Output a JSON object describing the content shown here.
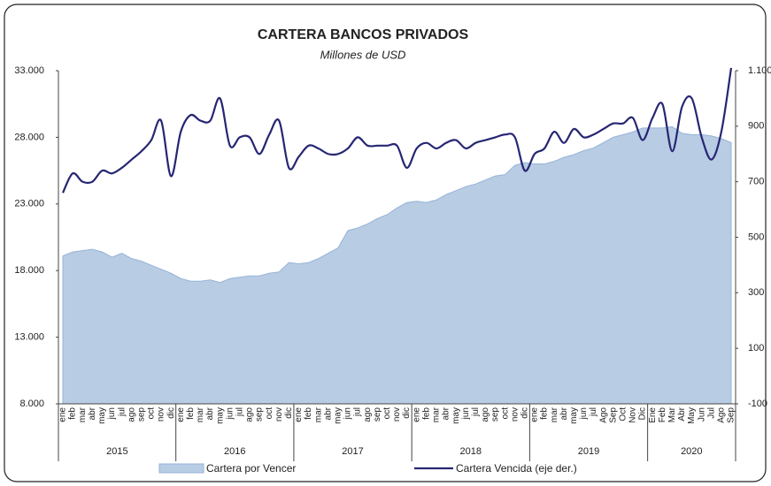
{
  "chart_data": {
    "type": "area_line",
    "title": "CARTERA BANCOS PRIVADOS",
    "subtitle": "Millones de USD",
    "categories": [
      "ene",
      "feb",
      "mar",
      "abr",
      "may",
      "jun",
      "jul",
      "ago",
      "sep",
      "oct",
      "nov",
      "dic",
      "ene",
      "feb",
      "mar",
      "abr",
      "may",
      "jun",
      "jul",
      "ago",
      "sep",
      "oct",
      "nov",
      "dic",
      "ene",
      "feb",
      "mar",
      "abr",
      "may",
      "jun",
      "jul",
      "ago",
      "sep",
      "oct",
      "nov",
      "dic",
      "ene",
      "feb",
      "mar",
      "abr",
      "may",
      "jun",
      "jul",
      "ago",
      "sep",
      "oct",
      "nov",
      "dic",
      "ene",
      "feb",
      "mar",
      "abr",
      "may",
      "jun",
      "jul",
      "Ago",
      "Sep",
      "Oct",
      "Nov",
      "Dic",
      "Ene",
      "Feb",
      "Mar",
      "Abr",
      "May",
      "Jun",
      "Jul",
      "Ago",
      "Sep"
    ],
    "years": [
      "2015",
      "2016",
      "2017",
      "2018",
      "2019",
      "2020"
    ],
    "series": [
      {
        "name": "Cartera por Vencer",
        "color": "#b8cce4",
        "axis": "y",
        "values": [
          19100,
          19400,
          19500,
          19600,
          19400,
          19000,
          19300,
          18900,
          18700,
          18400,
          18100,
          17800,
          17400,
          17200,
          17200,
          17300,
          17100,
          17400,
          17500,
          17600,
          17600,
          17800,
          17900,
          18600,
          18500,
          18600,
          18900,
          19300,
          19700,
          21000,
          21200,
          21500,
          21900,
          22200,
          22700,
          23100,
          23200,
          23100,
          23300,
          23700,
          24000,
          24300,
          24500,
          24800,
          25100,
          25200,
          25900,
          26100,
          26000,
          26000,
          26200,
          26500,
          26700,
          27000,
          27200,
          27600,
          28000,
          28200,
          28400,
          28700,
          28700,
          28700,
          28800,
          28300,
          28200,
          28200,
          28100,
          27900,
          27600
        ]
      },
      {
        "name": "Cartera Vencida (eje der.)",
        "color": "#262673",
        "axis": "y2",
        "values": [
          660,
          730,
          700,
          700,
          740,
          730,
          750,
          780,
          810,
          850,
          920,
          720,
          880,
          940,
          920,
          920,
          1000,
          830,
          860,
          860,
          800,
          870,
          920,
          750,
          790,
          830,
          820,
          800,
          800,
          820,
          860,
          830,
          830,
          830,
          830,
          750,
          820,
          840,
          820,
          840,
          850,
          820,
          840,
          850,
          860,
          870,
          860,
          740,
          800,
          820,
          880,
          840,
          890,
          860,
          870,
          890,
          910,
          910,
          930,
          850,
          930,
          980,
          810,
          970,
          1000,
          860,
          780,
          880,
          1110
        ]
      }
    ],
    "ylim": [
      8000,
      33000
    ],
    "yticks": [
      {
        "value": 8000,
        "label": "8.000"
      },
      {
        "value": 13000,
        "label": "13.000"
      },
      {
        "value": 18000,
        "label": "18.000"
      },
      {
        "value": 23000,
        "label": "23.000"
      },
      {
        "value": 28000,
        "label": "28.000"
      },
      {
        "value": 33000,
        "label": "33.000"
      }
    ],
    "y2lim": [
      -100,
      1100
    ],
    "y2ticks": [
      -100,
      100,
      300,
      500,
      700,
      900,
      {
        "value": 1100,
        "label": "1.100"
      }
    ]
  }
}
